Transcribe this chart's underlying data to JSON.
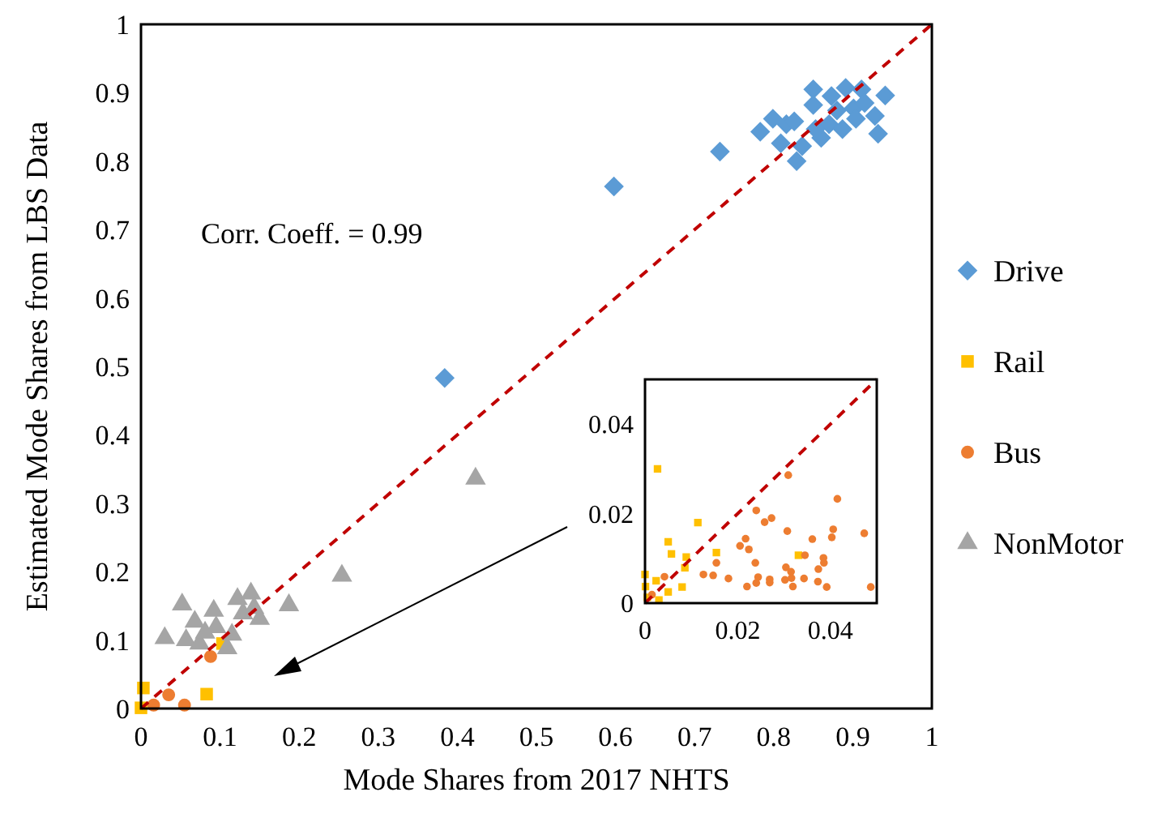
{
  "chart_data": [
    {
      "type": "scatter",
      "xlabel": "Mode Shares from 2017 NHTS",
      "ylabel": "Estimated Mode Shares from LBS Data",
      "xlim": [
        0,
        1
      ],
      "ylim": [
        0,
        1
      ],
      "xticks": [
        0,
        0.1,
        0.2,
        0.3,
        0.4,
        0.5,
        0.6,
        0.7,
        0.8,
        0.9,
        1
      ],
      "yticks": [
        0,
        0.1,
        0.2,
        0.3,
        0.4,
        0.5,
        0.6,
        0.7,
        0.8,
        0.9,
        1
      ],
      "legend": "right",
      "annotations": [
        "Corr. Coeff. = 0.99"
      ],
      "series": [
        {
          "name": "Drive",
          "color": "#5b9bd5",
          "marker": "diamond",
          "x": [
            0.85,
            0.891,
            0.911,
            0.941,
            0.873,
            0.85,
            0.799,
            0.783,
            0.816,
            0.826,
            0.809,
            0.829,
            0.836,
            0.86,
            0.87,
            0.88,
            0.901,
            0.915,
            0.928,
            0.932,
            0.904,
            0.887,
            0.853,
            0.732,
            0.598,
            0.384
          ],
          "values": [
            0.905,
            0.907,
            0.905,
            0.896,
            0.895,
            0.882,
            0.862,
            0.843,
            0.854,
            0.858,
            0.826,
            0.8,
            0.822,
            0.834,
            0.854,
            0.874,
            0.877,
            0.885,
            0.866,
            0.84,
            0.862,
            0.847,
            0.847,
            0.814,
            0.763,
            0.483
          ]
        },
        {
          "name": "Rail",
          "color": "#ffc000",
          "marker": "square",
          "x": [
            0.003,
            0,
            0.083,
            0.103
          ],
          "values": [
            0.03,
            0.001,
            0.021,
            0.095
          ]
        },
        {
          "name": "Bus",
          "color": "#ed7d31",
          "marker": "circle",
          "x": [
            0.016,
            0.035,
            0.055,
            0.088
          ],
          "values": [
            0.005,
            0.02,
            0.005,
            0.076
          ]
        },
        {
          "name": "NonMotor",
          "color": "#a5a5a5",
          "marker": "triangle",
          "x": [
            0.052,
            0.03,
            0.068,
            0.092,
            0.095,
            0.122,
            0.139,
            0.143,
            0.187,
            0.115,
            0.109,
            0.057,
            0.074,
            0.15,
            0.129,
            0.081,
            0.254,
            0.423
          ],
          "values": [
            0.152,
            0.103,
            0.127,
            0.143,
            0.119,
            0.16,
            0.168,
            0.147,
            0.151,
            0.108,
            0.088,
            0.1,
            0.095,
            0.131,
            0.139,
            0.111,
            0.194,
            0.336
          ]
        },
        {
          "type": "line",
          "color": "#c00000",
          "line_style": "dashed",
          "marker": "none",
          "x": [
            0,
            1
          ],
          "values": [
            0,
            1
          ]
        }
      ]
    },
    {
      "type": "scatter",
      "xlim": [
        0,
        0.05
      ],
      "ylim": [
        0,
        0.05
      ],
      "xticks": [
        0,
        0.02,
        0.04
      ],
      "yticks": [
        0,
        0.02,
        0.04
      ],
      "series": [
        {
          "color": "#ffc000",
          "marker": "square",
          "x": [
            0.0027,
            0.0114,
            0.005,
            0.0057,
            0.0089,
            0.0154,
            0.0086,
            0.008,
            0,
            0.0024,
            0.005,
            0.0005,
            0.003,
            0.0331,
            0.0001
          ],
          "values": [
            0.03,
            0.018,
            0.0137,
            0.011,
            0.0103,
            0.0113,
            0.0079,
            0.0036,
            0.0064,
            0.005,
            0.0025,
            0.0013,
            0.0007,
            0.0107,
            0.0037
          ]
        },
        {
          "color": "#ed7d31",
          "marker": "circle",
          "x": [
            0.0042,
            0.0126,
            0.0147,
            0.0154,
            0.018,
            0.0205,
            0.0217,
            0.0224,
            0.0238,
            0.022,
            0.024,
            0.0244,
            0.024,
            0.0258,
            0.0273,
            0.0269,
            0.0269,
            0.0307,
            0.0309,
            0.0304,
            0.0315,
            0.0302,
            0.0319,
            0.0316,
            0.0343,
            0.0345,
            0.0361,
            0.0374,
            0.0385,
            0.0386,
            0.0373,
            0.0392,
            0.0403,
            0.0406,
            0.0415,
            0.0473,
            0.0487,
            0.0015
          ],
          "values": [
            0.0059,
            0.0064,
            0.0062,
            0.009,
            0.0055,
            0.0128,
            0.0144,
            0.012,
            0.009,
            0.0037,
            0.0045,
            0.0058,
            0.0207,
            0.0181,
            0.019,
            0.0053,
            0.0046,
            0.0161,
            0.0286,
            0.008,
            0.007,
            0.0052,
            0.0037,
            0.0056,
            0.0055,
            0.0107,
            0.0143,
            0.0076,
            0.0101,
            0.009,
            0.0048,
            0.0036,
            0.0147,
            0.0165,
            0.0233,
            0.0156,
            0.0036,
            0.0019
          ]
        },
        {
          "type": "line",
          "color": "#c00000",
          "line_style": "dashed",
          "marker": "none",
          "x": [
            0,
            0.05
          ],
          "values": [
            0,
            0.05
          ]
        }
      ]
    }
  ]
}
